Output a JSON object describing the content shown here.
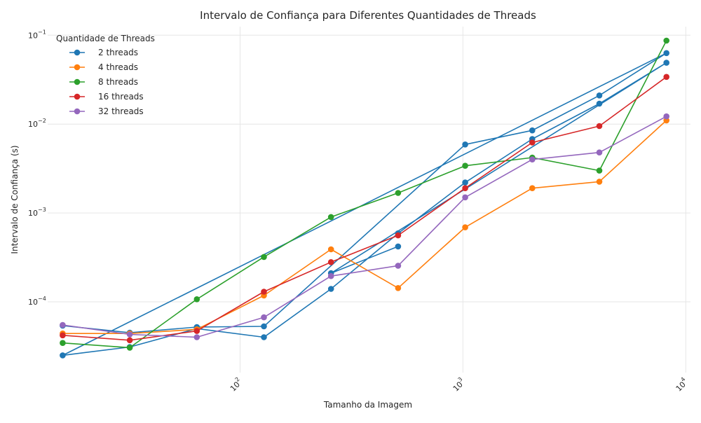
{
  "chart_data": {
    "type": "line",
    "title": "Intervalo de Confiança para Diferentes Quantidades de Threads",
    "xlabel": "Tamanho da Imagem",
    "ylabel": "Intervalo de Confiança (s)",
    "xscale": "log",
    "yscale": "log",
    "xlim": [
      13.7,
      10500
    ],
    "ylim": [
      1.6e-05,
      0.125
    ],
    "x_ticks": [
      {
        "value": 100,
        "base": "10",
        "exp": "2"
      },
      {
        "value": 1000,
        "base": "10",
        "exp": "3"
      },
      {
        "value": 10000,
        "base": "10",
        "exp": "4"
      }
    ],
    "y_ticks": [
      {
        "value": 0.0001,
        "base": "10",
        "exp": "−4"
      },
      {
        "value": 0.001,
        "base": "10",
        "exp": "−3"
      },
      {
        "value": 0.01,
        "base": "10",
        "exp": "−2"
      },
      {
        "value": 0.1,
        "base": "10",
        "exp": "−1"
      }
    ],
    "grid": true,
    "legend": {
      "title": "Quantidade de Threads",
      "placement": "top-left"
    },
    "series": [
      {
        "name": "2 threads",
        "color": "#1f77b4",
        "points": [
          [
            16,
            5.4e-05
          ],
          [
            32,
            4.5e-05
          ],
          [
            64,
            5.2e-05
          ],
          [
            128,
            5.3e-05
          ],
          [
            1024,
            0.0059
          ],
          [
            2048,
            0.0085
          ],
          [
            4096,
            0.021
          ],
          [
            8192,
            0.063
          ],
          [
            16,
            2.5e-05
          ],
          [
            32,
            3.1e-05
          ],
          [
            64,
            5e-05
          ],
          [
            128,
            4e-05
          ],
          [
            256,
            0.00014
          ],
          [
            512,
            0.00059
          ],
          [
            1024,
            0.0022
          ],
          [
            2048,
            0.0068
          ],
          [
            4096,
            0.017
          ],
          [
            8192,
            0.049
          ],
          [
            256,
            0.00021
          ],
          [
            512,
            0.00042
          ]
        ]
      },
      {
        "name": "4 threads",
        "color": "#ff7f0e",
        "points": [
          [
            16,
            4.4e-05
          ],
          [
            32,
            4.4e-05
          ],
          [
            64,
            4.9e-05
          ],
          [
            128,
            0.000118
          ],
          [
            256,
            0.00039
          ],
          [
            512,
            0.000143
          ],
          [
            1024,
            0.00069
          ],
          [
            2048,
            0.0019
          ],
          [
            4096,
            0.00225
          ],
          [
            8192,
            0.011
          ]
        ]
      },
      {
        "name": "8 threads",
        "color": "#2ca02c",
        "points": [
          [
            16,
            3.45e-05
          ],
          [
            32,
            3.05e-05
          ],
          [
            64,
            0.000107
          ],
          [
            128,
            0.00032
          ],
          [
            256,
            0.0009
          ],
          [
            512,
            0.00168
          ],
          [
            1024,
            0.0034
          ],
          [
            2048,
            0.0042
          ],
          [
            4096,
            0.003
          ],
          [
            8192,
            0.087
          ]
        ]
      },
      {
        "name": "16 threads",
        "color": "#d62728",
        "points": [
          [
            16,
            4.2e-05
          ],
          [
            32,
            3.7e-05
          ],
          [
            64,
            4.7e-05
          ],
          [
            128,
            0.00013
          ],
          [
            256,
            0.00028
          ],
          [
            512,
            0.00056
          ],
          [
            1024,
            0.0019
          ],
          [
            2048,
            0.0062
          ],
          [
            4096,
            0.0095
          ],
          [
            8192,
            0.034
          ]
        ]
      },
      {
        "name": "32 threads",
        "color": "#9467bd",
        "points": [
          [
            16,
            5.5e-05
          ],
          [
            32,
            4.3e-05
          ],
          [
            64,
            4e-05
          ],
          [
            128,
            6.7e-05
          ],
          [
            256,
            0.000195
          ],
          [
            512,
            0.000255
          ],
          [
            1024,
            0.0015
          ],
          [
            2048,
            0.004
          ],
          [
            4096,
            0.0048
          ],
          [
            8192,
            0.0122
          ]
        ]
      }
    ]
  }
}
